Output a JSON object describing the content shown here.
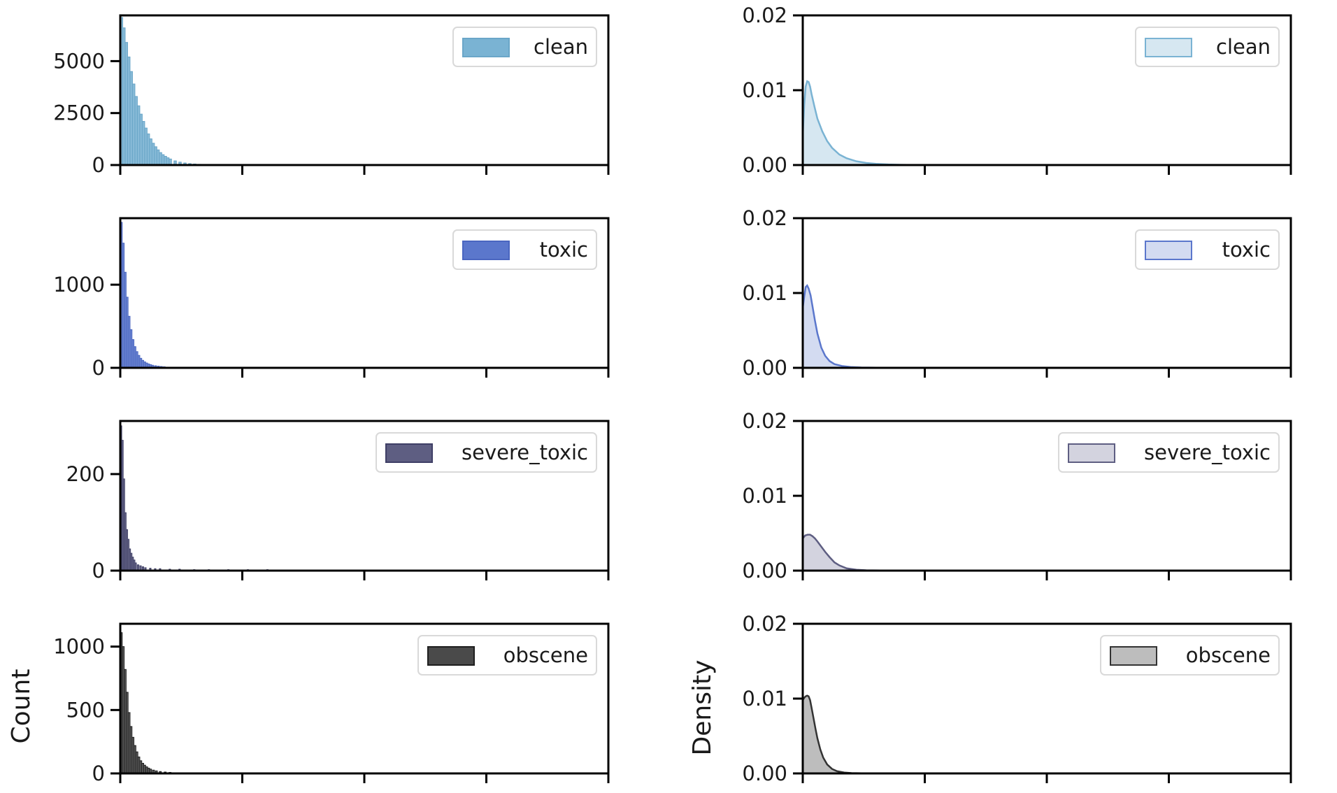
{
  "figure": {
    "left_ylabel": "Count",
    "right_ylabel": "Density"
  },
  "chart_data": [
    {
      "type": "histogram",
      "name": "clean",
      "legend": "clean",
      "color": "#7ab3d3",
      "edge_color": "#6aa6c8",
      "ylim": [
        0,
        7200
      ],
      "yticks": [
        0,
        2500,
        5000
      ],
      "ytick_labels": [
        "0",
        "2500",
        "5000"
      ],
      "xlim": [
        0,
        1000
      ],
      "xticks": [
        0,
        250,
        500,
        750,
        1000
      ],
      "xtick_labels": [
        "",
        "",
        "",
        "",
        ""
      ],
      "bin_width": 5,
      "x": [
        0,
        5,
        10,
        15,
        20,
        25,
        30,
        35,
        40,
        45,
        50,
        55,
        60,
        65,
        70,
        75,
        80,
        85,
        90,
        95,
        100,
        110,
        120,
        130,
        140,
        150,
        160,
        170,
        180,
        190
      ],
      "values": [
        7100,
        6600,
        5900,
        5200,
        4500,
        3900,
        3300,
        2850,
        2450,
        2100,
        1780,
        1500,
        1260,
        1050,
        880,
        730,
        600,
        500,
        420,
        350,
        290,
        200,
        140,
        100,
        70,
        50,
        35,
        25,
        15,
        10
      ]
    },
    {
      "type": "density",
      "name": "clean",
      "legend": "clean",
      "color": "#7ab3d3",
      "fill_color": "#d6e7f1",
      "ylim": [
        0,
        0.02
      ],
      "yticks": [
        0,
        0.01,
        0.02
      ],
      "ytick_labels": [
        "0.00",
        "0.01",
        "0.02"
      ],
      "xlim": [
        0,
        1000
      ],
      "xticks": [
        0,
        250,
        500,
        750,
        1000
      ],
      "xtick_labels": [
        "",
        "",
        "",
        "",
        ""
      ],
      "x": [
        0,
        3,
        6,
        9,
        12,
        15,
        18,
        24,
        30,
        40,
        50,
        60,
        75,
        90,
        110,
        130,
        150,
        175,
        200,
        240
      ],
      "y": [
        0.004,
        0.008,
        0.0105,
        0.0112,
        0.0111,
        0.0105,
        0.0095,
        0.0078,
        0.0062,
        0.0045,
        0.0032,
        0.0023,
        0.0014,
        0.0009,
        0.0005,
        0.00028,
        0.00016,
        8e-05,
        4e-05,
        0.0
      ]
    },
    {
      "type": "histogram",
      "name": "toxic",
      "legend": "toxic",
      "color": "#5b77cc",
      "edge_color": "#4a66c0",
      "ylim": [
        0,
        1800
      ],
      "yticks": [
        0,
        1000
      ],
      "ytick_labels": [
        "0",
        "1000"
      ],
      "xlim": [
        0,
        1000
      ],
      "xticks": [
        0,
        250,
        500,
        750,
        1000
      ],
      "xtick_labels": [
        "",
        "",
        "",
        "",
        ""
      ],
      "bin_width": 4,
      "x": [
        0,
        4,
        8,
        12,
        16,
        20,
        24,
        28,
        32,
        36,
        40,
        44,
        48,
        52,
        56,
        60,
        64,
        70,
        76,
        82,
        88,
        100,
        120,
        140,
        160,
        180
      ],
      "values": [
        1750,
        1500,
        1150,
        850,
        620,
        460,
        340,
        255,
        195,
        150,
        115,
        90,
        72,
        58,
        47,
        38,
        31,
        25,
        20,
        16,
        12,
        8,
        5,
        3,
        2,
        1
      ]
    },
    {
      "type": "density",
      "name": "toxic",
      "legend": "toxic",
      "color": "#5b77cc",
      "fill_color": "#d3dbf1",
      "ylim": [
        0,
        0.02
      ],
      "yticks": [
        0,
        0.01,
        0.02
      ],
      "ytick_labels": [
        "0.00",
        "0.01",
        "0.02"
      ],
      "xlim": [
        0,
        1000
      ],
      "xticks": [
        0,
        250,
        500,
        750,
        1000
      ],
      "xtick_labels": [
        "",
        "",
        "",
        "",
        ""
      ],
      "x": [
        0,
        3,
        6,
        9,
        12,
        16,
        20,
        25,
        30,
        38,
        46,
        55,
        65,
        80,
        100,
        120,
        150,
        180,
        220
      ],
      "y": [
        0.008,
        0.0095,
        0.0108,
        0.011,
        0.0106,
        0.0097,
        0.0082,
        0.0063,
        0.0046,
        0.0027,
        0.0016,
        0.0009,
        0.0005,
        0.00025,
        0.0001,
        5e-05,
        2e-05,
        1e-05,
        0.0
      ]
    },
    {
      "type": "histogram",
      "name": "severe_toxic",
      "legend": "severe_toxic",
      "color": "#5e5e82",
      "edge_color": "#3f3f66",
      "ylim": [
        0,
        310
      ],
      "yticks": [
        0,
        200
      ],
      "ytick_labels": [
        "0",
        "200"
      ],
      "xlim": [
        0,
        1000
      ],
      "xticks": [
        0,
        250,
        500,
        750,
        1000
      ],
      "xtick_labels": [
        "",
        "",
        "",
        "",
        ""
      ],
      "bin_width": 3,
      "x": [
        0,
        3,
        6,
        9,
        12,
        15,
        18,
        21,
        24,
        27,
        30,
        35,
        40,
        45,
        50,
        60,
        70,
        80,
        100,
        120,
        150,
        180,
        220,
        260,
        300,
        340,
        400,
        480,
        520,
        560,
        600
      ],
      "values": [
        300,
        270,
        190,
        120,
        85,
        65,
        45,
        36,
        28,
        22,
        16,
        12,
        10,
        8,
        6,
        5,
        4,
        4,
        3,
        3,
        2,
        2,
        2,
        2,
        2,
        1,
        1,
        1,
        1,
        1,
        1
      ]
    },
    {
      "type": "density",
      "name": "severe_toxic",
      "legend": "severe_toxic",
      "color": "#5e5e82",
      "fill_color": "#d3d3df",
      "ylim": [
        0,
        0.02
      ],
      "yticks": [
        0,
        0.01,
        0.02
      ],
      "ytick_labels": [
        "0.00",
        "0.01",
        "0.02"
      ],
      "xlim": [
        0,
        1000
      ],
      "xticks": [
        0,
        250,
        500,
        750,
        1000
      ],
      "xtick_labels": [
        "",
        "",
        "",
        "",
        ""
      ],
      "x": [
        0,
        5,
        10,
        15,
        20,
        25,
        30,
        38,
        46,
        55,
        65,
        75,
        90,
        110,
        130,
        160,
        200
      ],
      "y": [
        0.0043,
        0.0047,
        0.0048,
        0.0048,
        0.0046,
        0.0043,
        0.0039,
        0.0032,
        0.0025,
        0.0018,
        0.0011,
        0.0007,
        0.0003,
        0.00012,
        5e-05,
        2e-05,
        0.0
      ]
    },
    {
      "type": "histogram",
      "name": "obscene",
      "legend": "obscene",
      "color": "#4a4a4a",
      "edge_color": "#1e1e1e",
      "ylim": [
        0,
        1180
      ],
      "yticks": [
        0,
        500,
        1000
      ],
      "ytick_labels": [
        "0",
        "500",
        "1000"
      ],
      "xlim": [
        0,
        1000
      ],
      "xticks": [
        0,
        250,
        500,
        750,
        1000
      ],
      "xtick_labels": [
        "",
        "",
        "",
        "",
        ""
      ],
      "bin_width": 4,
      "x": [
        0,
        4,
        8,
        12,
        16,
        20,
        24,
        28,
        32,
        36,
        40,
        44,
        48,
        52,
        56,
        60,
        66,
        72,
        80,
        90,
        100,
        120,
        140,
        160,
        180
      ],
      "values": [
        1110,
        1000,
        820,
        640,
        480,
        370,
        285,
        220,
        170,
        130,
        100,
        80,
        65,
        52,
        42,
        34,
        26,
        20,
        15,
        11,
        8,
        5,
        3,
        2,
        1
      ]
    },
    {
      "type": "density",
      "name": "obscene",
      "legend": "obscene",
      "color": "#333333",
      "fill_color": "#bdbdbd",
      "ylim": [
        0,
        0.02
      ],
      "yticks": [
        0,
        0.01,
        0.02
      ],
      "ytick_labels": [
        "0.00",
        "0.01",
        "0.02"
      ],
      "xlim": [
        0,
        1000
      ],
      "xticks": [
        0,
        250,
        500,
        750,
        1000
      ],
      "xtick_labels": [
        "",
        "",
        "",
        "",
        ""
      ],
      "x": [
        0,
        3,
        6,
        9,
        12,
        15,
        18,
        22,
        26,
        30,
        36,
        42,
        50,
        60,
        70,
        85,
        100,
        130,
        170
      ],
      "y": [
        0.0098,
        0.0101,
        0.0103,
        0.0104,
        0.0103,
        0.0098,
        0.0088,
        0.0074,
        0.006,
        0.0047,
        0.0032,
        0.0021,
        0.0012,
        0.0006,
        0.0003,
        0.00012,
        5e-05,
        1e-05,
        0.0
      ]
    }
  ]
}
